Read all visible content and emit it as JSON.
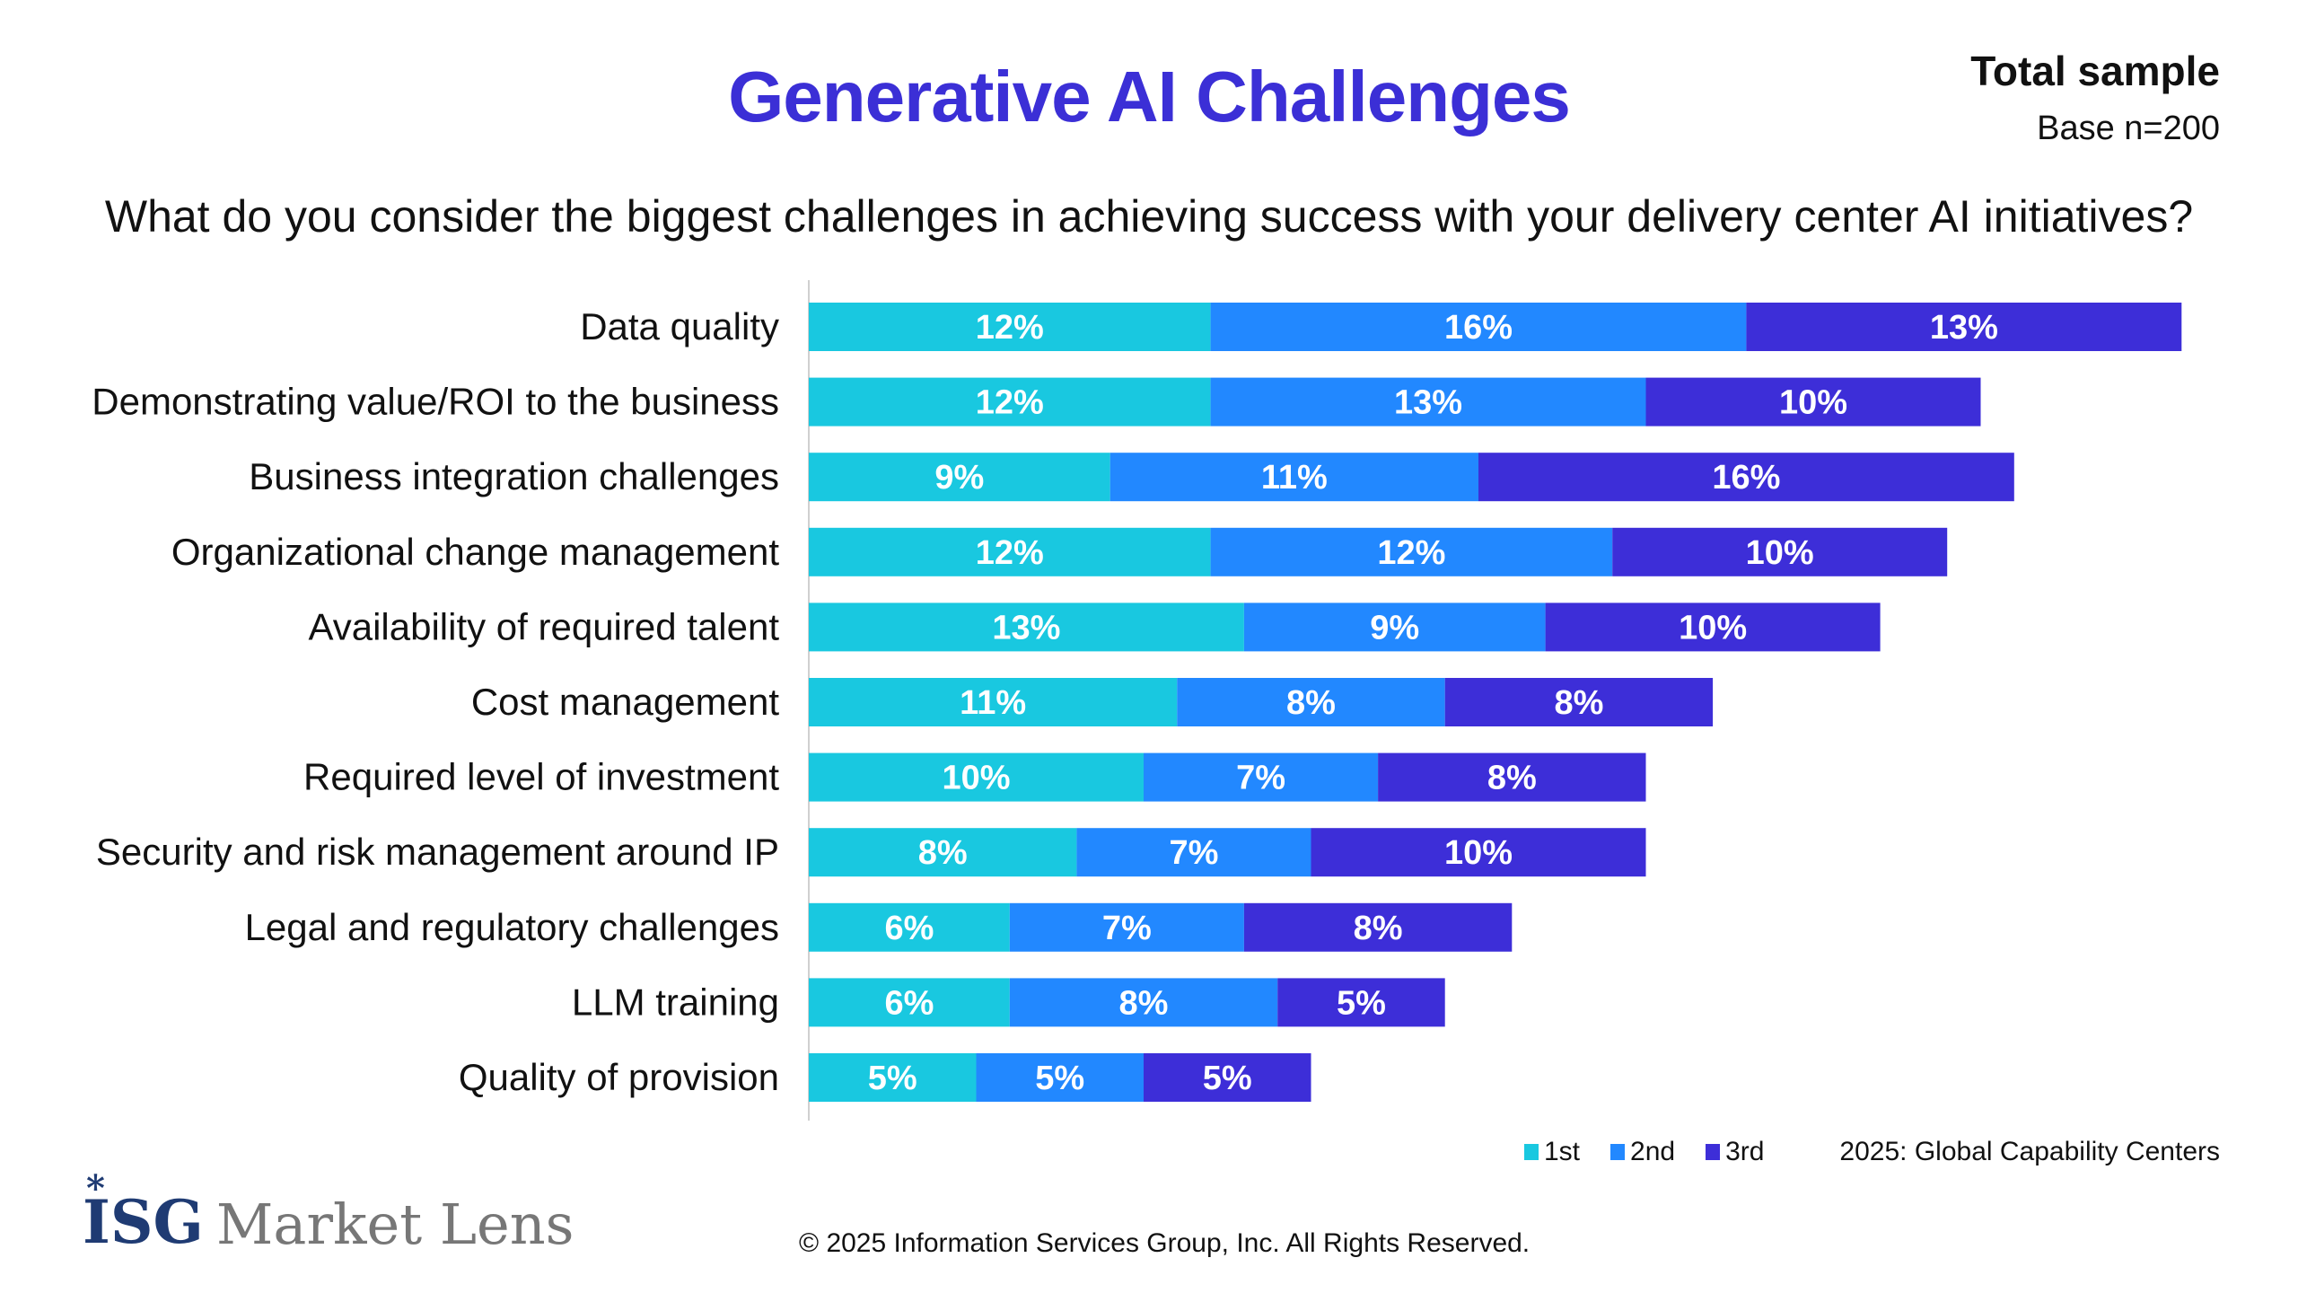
{
  "header": {
    "title": "Generative AI Challenges",
    "sample_title": "Total sample",
    "sample_base": "Base n=200",
    "question": "What do you consider the biggest challenges in achieving success with your delivery center AI initiatives?"
  },
  "chart_data": {
    "type": "bar",
    "orientation": "horizontal",
    "stacked": true,
    "categories": [
      "Data quality",
      "Demonstrating value/ROI to the business",
      "Business integration challenges",
      "Organizational change management",
      "Availability of required talent",
      "Cost management",
      "Required level of investment",
      "Security and risk management around IP",
      "Legal and regulatory challenges",
      "LLM training",
      "Quality of provision"
    ],
    "series": [
      {
        "name": "1st",
        "color": "#19c8e0",
        "values": [
          12,
          12,
          9,
          12,
          13,
          11,
          10,
          8,
          6,
          6,
          5
        ]
      },
      {
        "name": "2nd",
        "color": "#2288ff",
        "values": [
          16,
          13,
          11,
          12,
          9,
          8,
          7,
          7,
          7,
          8,
          5
        ]
      },
      {
        "name": "3rd",
        "color": "#3d2ed8",
        "values": [
          13,
          10,
          16,
          10,
          10,
          8,
          8,
          10,
          8,
          5,
          5
        ]
      }
    ],
    "value_suffix": "%",
    "legend_position": "bottom-right",
    "grid": false
  },
  "footer": {
    "source": "2025: Global Capability Centers",
    "copyright": "© 2025 Information Services Group, Inc. All Rights Reserved.",
    "logo_text": "ISG Market Lens"
  }
}
